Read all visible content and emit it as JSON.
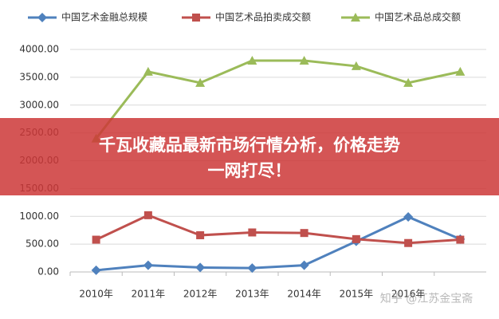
{
  "chart_data": {
    "type": "line",
    "categories": [
      "2010年",
      "2011年",
      "2012年",
      "2013年",
      "2014年",
      "2015年",
      "2016年",
      null
    ],
    "series": [
      {
        "name": "中国艺术金融总规模",
        "color": "#4f81bd",
        "marker": "diamond",
        "values": [
          30,
          120,
          80,
          70,
          120,
          550,
          990,
          590
        ]
      },
      {
        "name": "中国艺术品拍卖成交额",
        "color": "#c0504d",
        "marker": "square",
        "values": [
          580,
          1020,
          660,
          710,
          700,
          590,
          520,
          580
        ]
      },
      {
        "name": "中国艺术品总成交额",
        "color": "#9bbb59",
        "marker": "triangle",
        "values": [
          2400,
          3600,
          3400,
          3800,
          3800,
          3700,
          3400,
          3600
        ]
      }
    ],
    "ylim": [
      0,
      4000
    ],
    "yticks": [
      {
        "value": 0,
        "label": "0.00"
      },
      {
        "value": 500,
        "label": "500.00"
      },
      {
        "value": 1000,
        "label": "1000.00"
      },
      {
        "value": 1500,
        "label": "1500.00"
      },
      {
        "value": 2000,
        "label": "2000.00"
      },
      {
        "value": 2500,
        "label": "2500.00"
      },
      {
        "value": 3000,
        "label": "3000.00"
      },
      {
        "value": 3500,
        "label": "3500.00"
      },
      {
        "value": 4000,
        "label": "4000.00"
      }
    ],
    "grid": true,
    "legend": "top"
  },
  "overlay": {
    "lines": [
      "千瓦收藏品最新市场行情分析，价格走势",
      "一网打尽！"
    ],
    "watermark": "知乎 @江苏金宝斋"
  }
}
